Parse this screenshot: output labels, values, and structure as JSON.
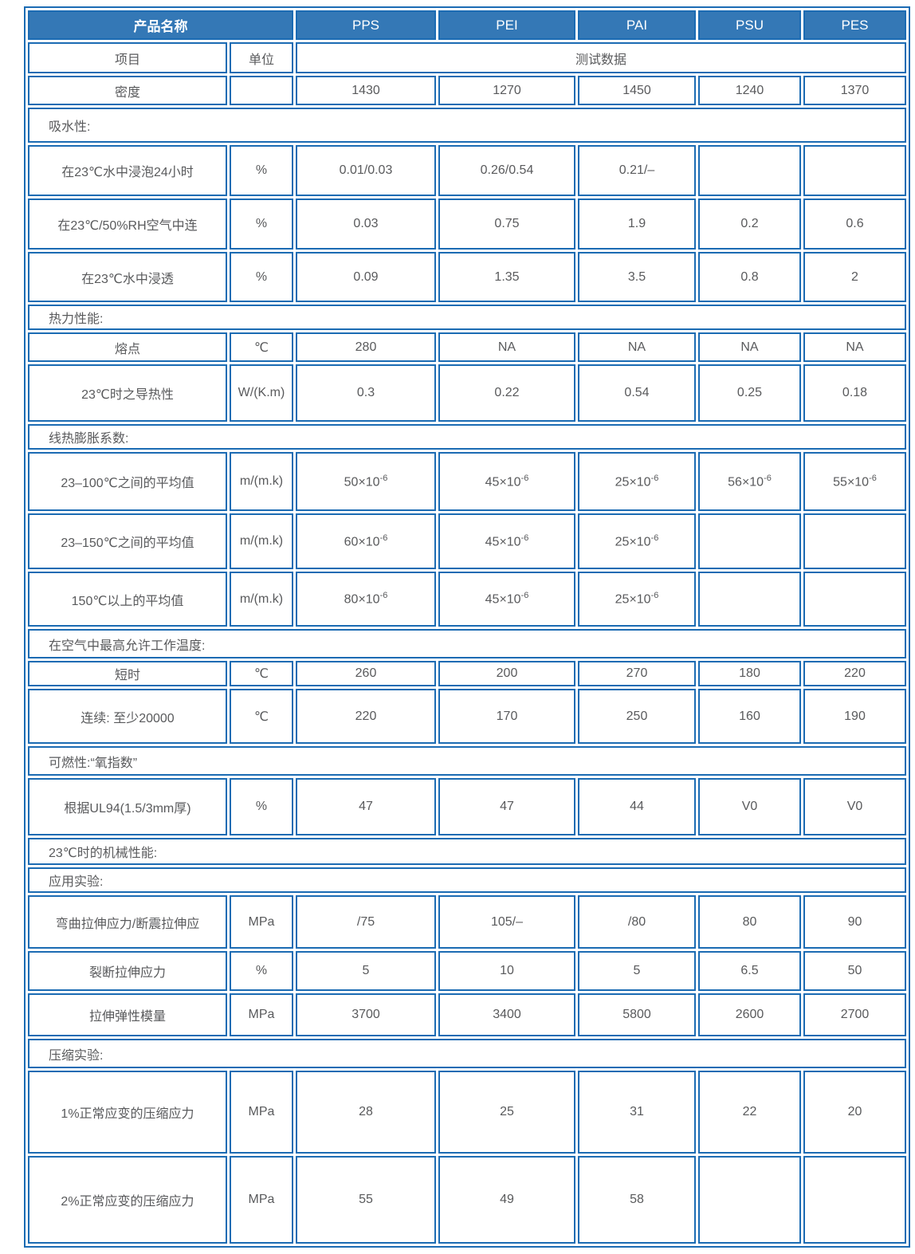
{
  "colors": {
    "border_blue": "#1b6bb3",
    "header_background": "#3478b6",
    "header_text": "#ffffff",
    "cell_text": "#595a5c",
    "cell_background": "#ffffff"
  },
  "header": {
    "product_label": "产品名称",
    "products": [
      "PPS",
      "PEI",
      "PAI",
      "PSU",
      "PES"
    ]
  },
  "subheader": {
    "item": "项目",
    "unit": "单位",
    "test_data": "测试数据"
  },
  "rows": [
    {
      "type": "data",
      "label": "密度",
      "unit": "",
      "values": [
        "1430",
        "1270",
        "1450",
        "1240",
        "1370"
      ]
    },
    {
      "type": "section",
      "label": "吸水性:"
    },
    {
      "type": "data",
      "label": "在23℃水中浸泡24小时",
      "unit": "%",
      "values": [
        "0.01/0.03",
        "0.26/0.54",
        "0.21/–",
        "",
        ""
      ]
    },
    {
      "type": "data",
      "label": "在23℃/50%RH空气中连",
      "unit": "%",
      "values": [
        "0.03",
        "0.75",
        "1.9",
        "0.2",
        "0.6"
      ]
    },
    {
      "type": "data",
      "label": "在23℃水中浸透",
      "unit": "%",
      "values": [
        "0.09",
        "1.35",
        "3.5",
        "0.8",
        "2"
      ]
    },
    {
      "type": "section",
      "label": "热力性能:"
    },
    {
      "type": "data",
      "label": "熔点",
      "unit": "℃",
      "values": [
        "280",
        "NA",
        "NA",
        "NA",
        "NA"
      ]
    },
    {
      "type": "data",
      "label": "23℃时之导热性",
      "unit": "W/(K.m)",
      "values": [
        "0.3",
        "0.22",
        "0.54",
        "0.25",
        "0.18"
      ]
    },
    {
      "type": "section",
      "label": "线热膨胀系数:"
    },
    {
      "type": "data",
      "label": "23–100℃之间的平均值",
      "unit": "m/(m.k)",
      "values": [
        "50×10^-6",
        "45×10^-6",
        "25×10^-6",
        "56×10^-6",
        "55×10^-6"
      ]
    },
    {
      "type": "data",
      "label": "23–150℃之间的平均值",
      "unit": "m/(m.k)",
      "values": [
        "60×10^-6",
        "45×10^-6",
        "25×10^-6",
        "",
        ""
      ]
    },
    {
      "type": "data",
      "label": "150℃以上的平均值",
      "unit": "m/(m.k)",
      "values": [
        "80×10^-6",
        "45×10^-6",
        "25×10^-6",
        "",
        ""
      ]
    },
    {
      "type": "section",
      "label": "在空气中最高允许工作温度:"
    },
    {
      "type": "data",
      "label": "短时",
      "unit": "℃",
      "values": [
        "260",
        "200",
        "270",
        "180",
        "220"
      ]
    },
    {
      "type": "data",
      "label": "连续: 至少20000",
      "unit": "℃",
      "values": [
        "220",
        "170",
        "250",
        "160",
        "190"
      ]
    },
    {
      "type": "section",
      "label": "可燃性:“氧指数”"
    },
    {
      "type": "data",
      "label": "根据UL94(1.5/3mm厚)",
      "unit": "%",
      "values": [
        "47",
        "47",
        "44",
        "V0",
        "V0"
      ]
    },
    {
      "type": "section",
      "label": "23℃时的机械性能:"
    },
    {
      "type": "section",
      "label": "应用实验:"
    },
    {
      "type": "data",
      "label": "弯曲拉伸应力/断震拉伸应",
      "unit": "MPa",
      "values": [
        "/75",
        "105/–",
        "/80",
        "80",
        "90"
      ]
    },
    {
      "type": "data",
      "label": "裂断拉伸应力",
      "unit": "%",
      "values": [
        "5",
        "10",
        "5",
        "6.5",
        "50"
      ]
    },
    {
      "type": "data",
      "label": "拉伸弹性模量",
      "unit": "MPa",
      "values": [
        "3700",
        "3400",
        "5800",
        "2600",
        "2700"
      ]
    },
    {
      "type": "section",
      "label": "压缩实验:"
    },
    {
      "type": "data",
      "label": "1%正常应变的压缩应力",
      "unit": "MPa",
      "values": [
        "28",
        "25",
        "31",
        "22",
        "20"
      ]
    },
    {
      "type": "data",
      "label": "2%正常应变的压缩应力",
      "unit": "MPa",
      "values": [
        "55",
        "49",
        "58",
        "",
        ""
      ]
    }
  ]
}
